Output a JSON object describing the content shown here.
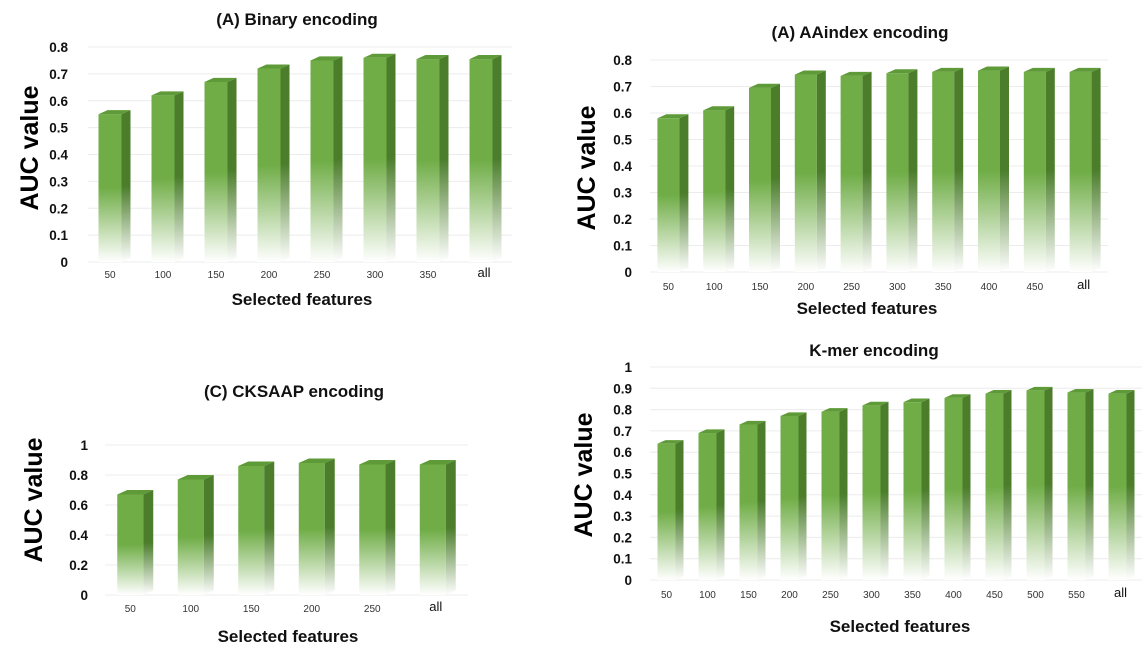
{
  "colors": {
    "bar_front": "#70ad47",
    "bar_side": "#4b7d2b",
    "bar_top": "#5e9a38",
    "fade": "#ffffff",
    "grid": "#ececec"
  },
  "chart_data": [
    {
      "type": "bar",
      "title": "(A) Binary  encoding",
      "xlabel": "Selected features",
      "ylabel": "AUC value",
      "categories": [
        "50",
        "100",
        "150",
        "200",
        "250",
        "300",
        "350",
        "all"
      ],
      "values": [
        0.55,
        0.62,
        0.67,
        0.72,
        0.75,
        0.76,
        0.755,
        0.755
      ],
      "ylim": [
        0,
        0.8
      ],
      "yticks": [
        "0",
        "0.1",
        "0.2",
        "0.3",
        "0.4",
        "0.5",
        "0.6",
        "0.7",
        "0.8"
      ],
      "grid": true,
      "legend": "none"
    },
    {
      "type": "bar",
      "title": "(A) AAindex encoding",
      "xlabel": "Selected features",
      "ylabel": "AUC value",
      "categories": [
        "50",
        "100",
        "150",
        "200",
        "250",
        "300",
        "350",
        "400",
        "450",
        "all"
      ],
      "values": [
        0.58,
        0.61,
        0.695,
        0.745,
        0.74,
        0.75,
        0.755,
        0.76,
        0.755,
        0.755
      ],
      "ylim": [
        0,
        0.8
      ],
      "yticks": [
        "0",
        "0.1",
        "0.2",
        "0.3",
        "0.4",
        "0.5",
        "0.6",
        "0.7",
        "0.8"
      ],
      "grid": true,
      "legend": "none"
    },
    {
      "type": "bar",
      "title": "(C) CKSAAP encoding",
      "xlabel": "Selected features",
      "ylabel": "AUC value",
      "categories": [
        "50",
        "100",
        "150",
        "200",
        "250",
        "all"
      ],
      "values": [
        0.67,
        0.77,
        0.86,
        0.88,
        0.87,
        0.87
      ],
      "ylim": [
        0,
        1
      ],
      "yticks": [
        "0",
        "0.2",
        "0.4",
        "0.6",
        "0.8",
        "1"
      ],
      "grid": true,
      "legend": "none"
    },
    {
      "type": "bar",
      "title": "K-mer encoding",
      "xlabel": "Selected features",
      "ylabel": "AUC value",
      "categories": [
        "50",
        "100",
        "150",
        "200",
        "250",
        "300",
        "350",
        "400",
        "450",
        "500",
        "550",
        "all"
      ],
      "values": [
        0.64,
        0.69,
        0.73,
        0.77,
        0.79,
        0.82,
        0.835,
        0.855,
        0.875,
        0.89,
        0.88,
        0.875
      ],
      "ylim": [
        0,
        1
      ],
      "yticks": [
        "0",
        "0.1",
        "0.2",
        "0.3",
        "0.4",
        "0.5",
        "0.6",
        "0.7",
        "0.8",
        "0.9",
        "1"
      ],
      "grid": true,
      "legend": "none"
    }
  ]
}
